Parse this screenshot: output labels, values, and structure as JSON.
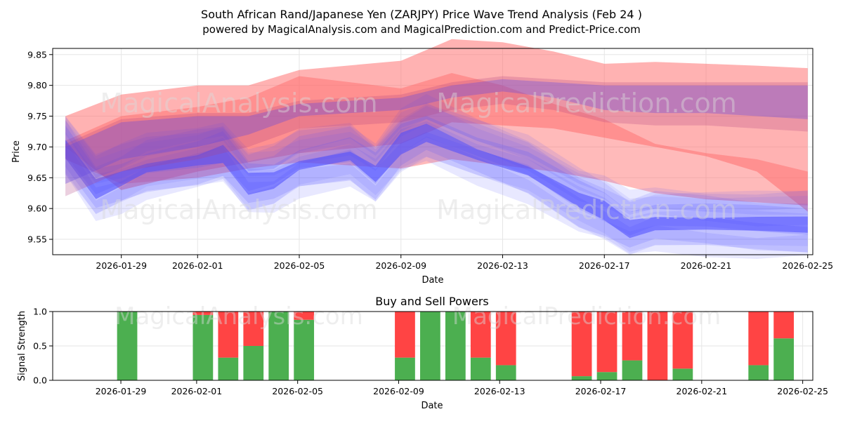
{
  "chart_data": [
    {
      "type": "area",
      "title": "South African Rand/Japanese Yen (ZARJPY) Price Wave Trend Analysis (Feb 24 )",
      "subtitle": "powered by MagicalAnalysis.com and MagicalPrediction.com and Predict-Price.com",
      "xlabel": "Date",
      "ylabel": "Price",
      "xlim": [
        "2026-01-27.7",
        "2026-02-25.2"
      ],
      "ylim": [
        9.525,
        9.86
      ],
      "x_ticks": [
        "2026-01-29",
        "2026-02-01",
        "2026-02-05",
        "2026-02-09",
        "2026-02-13",
        "2026-02-17",
        "2026-02-21",
        "2026-02-25"
      ],
      "x_tick_days": [
        1,
        4,
        8,
        12,
        16,
        20,
        24,
        28
      ],
      "y_ticks": [
        9.55,
        9.6,
        9.65,
        9.7,
        9.75,
        9.8,
        9.85
      ],
      "grid": true,
      "watermarks": [
        "MagicalAnalysis.com",
        "MagicalPrediction.com"
      ],
      "series": [
        {
          "name": "Red wave band (outer)",
          "color": "#ff6666",
          "x_days": [
            -1.2,
            1,
            4,
            6,
            8,
            12,
            14,
            16,
            18,
            20,
            22,
            24,
            26,
            28
          ],
          "upper": [
            9.75,
            9.785,
            9.8,
            9.8,
            9.825,
            9.84,
            9.875,
            9.87,
            9.855,
            9.835,
            9.838,
            9.835,
            9.832,
            9.828
          ],
          "lower": [
            9.7,
            9.63,
            9.66,
            9.675,
            9.69,
            9.705,
            9.74,
            9.735,
            9.73,
            9.715,
            9.7,
            9.685,
            9.66,
            9.595
          ]
        },
        {
          "name": "Red wave band (inner)",
          "color": "#ff6666",
          "x_days": [
            -1.2,
            1,
            4,
            6,
            8,
            12,
            14,
            16,
            18,
            20,
            22,
            24,
            26,
            28
          ],
          "upper": [
            9.71,
            9.75,
            9.765,
            9.78,
            9.815,
            9.795,
            9.82,
            9.8,
            9.77,
            9.745,
            9.705,
            9.69,
            9.68,
            9.66
          ],
          "lower": [
            9.68,
            9.64,
            9.65,
            9.665,
            9.675,
            9.665,
            9.68,
            9.67,
            9.66,
            9.645,
            9.625,
            9.615,
            9.61,
            9.605
          ]
        },
        {
          "name": "Blue wave bands",
          "color": "#4d4dff",
          "x_days": [
            -1.2,
            0,
            1,
            2,
            4,
            5,
            6,
            7,
            8,
            10,
            11,
            12,
            13,
            15,
            17,
            19,
            20,
            21,
            22,
            24,
            26,
            28
          ],
          "center": [
            9.7,
            9.63,
            9.645,
            9.665,
            9.68,
            9.69,
            9.64,
            9.645,
            9.67,
            9.685,
            9.655,
            9.705,
            9.725,
            9.69,
            9.66,
            9.61,
            9.595,
            9.57,
            9.58,
            9.575,
            9.57,
            9.57
          ]
        },
        {
          "name": "Purple long-term band",
          "color": "#6a4dc4",
          "x_days": [
            -1.2,
            1,
            4,
            6,
            8,
            12,
            14,
            16,
            18,
            20,
            22,
            24,
            26,
            28
          ],
          "upper": [
            9.7,
            9.74,
            9.75,
            9.75,
            9.77,
            9.78,
            9.8,
            9.81,
            9.805,
            9.8,
            9.8,
            9.8,
            9.8,
            9.8
          ],
          "lower": [
            9.64,
            9.68,
            9.7,
            9.72,
            9.75,
            9.76,
            9.78,
            9.79,
            9.78,
            9.76,
            9.755,
            9.755,
            9.75,
            9.745
          ]
        }
      ]
    },
    {
      "type": "bar",
      "title": "Buy and Sell Powers",
      "xlabel": "Date",
      "ylabel": "Signal Strength",
      "ylim": [
        0,
        1.0
      ],
      "y_ticks": [
        0.0,
        0.5,
        1.0
      ],
      "x_ticks": [
        "2026-01-29",
        "2026-02-01",
        "2026-02-05",
        "2026-02-09",
        "2026-02-13",
        "2026-02-17",
        "2026-02-21",
        "2026-02-25"
      ],
      "x_tick_days": [
        1,
        4,
        8,
        12,
        16,
        20,
        24,
        28
      ],
      "categories": [
        "2026-01-29",
        "2026-02-01",
        "2026-02-02",
        "2026-02-03",
        "2026-02-04",
        "2026-02-05",
        "2026-02-09",
        "2026-02-10",
        "2026-02-11",
        "2026-02-12",
        "2026-02-13",
        "2026-02-16",
        "2026-02-17",
        "2026-02-18",
        "2026-02-19",
        "2026-02-20",
        "2026-02-23",
        "2026-02-24"
      ],
      "bar_days": [
        1.25,
        4.25,
        5.25,
        6.25,
        7.25,
        8.25,
        12.25,
        13.25,
        14.25,
        15.25,
        16.25,
        19.25,
        20.25,
        21.25,
        22.25,
        23.25,
        26.25,
        27.25
      ],
      "series": [
        {
          "name": "Buy",
          "color": "#4caf50",
          "values": [
            1.0,
            0.95,
            0.33,
            0.5,
            1.0,
            0.88,
            0.33,
            1.0,
            1.0,
            0.33,
            0.22,
            0.06,
            0.12,
            0.29,
            0.0,
            0.17,
            0.22,
            0.61
          ]
        },
        {
          "name": "Sell",
          "color": "#ff4444",
          "values": [
            0.0,
            0.05,
            0.67,
            0.5,
            0.0,
            0.12,
            0.67,
            0.0,
            0.0,
            0.67,
            0.78,
            0.94,
            0.88,
            0.71,
            1.0,
            0.83,
            0.78,
            0.39
          ]
        }
      ]
    }
  ]
}
